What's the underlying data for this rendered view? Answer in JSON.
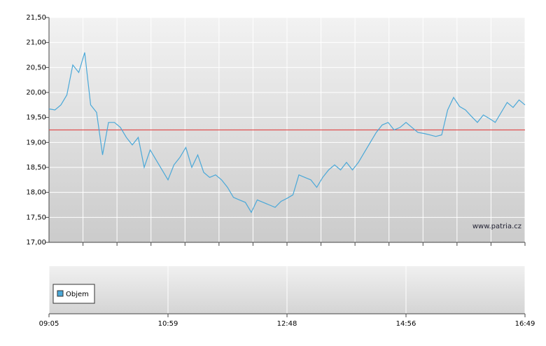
{
  "chart_data": {
    "type": "line",
    "categories": [
      "09:05",
      null,
      null,
      null,
      null,
      null,
      null,
      null,
      null,
      null,
      null,
      null,
      null,
      null,
      null,
      null,
      null,
      null,
      null,
      null,
      "10:59",
      null,
      null,
      null,
      null,
      null,
      null,
      null,
      null,
      null,
      null,
      null,
      null,
      null,
      null,
      null,
      null,
      null,
      null,
      null,
      "12:48",
      null,
      null,
      null,
      null,
      null,
      null,
      null,
      null,
      null,
      null,
      null,
      null,
      null,
      null,
      null,
      null,
      null,
      null,
      null,
      "14:56",
      null,
      null,
      null,
      null,
      null,
      null,
      null,
      null,
      null,
      null,
      null,
      null,
      null,
      null,
      null,
      null,
      null,
      null,
      null,
      "16:49"
    ],
    "values": [
      19.67,
      19.65,
      19.75,
      19.95,
      20.55,
      20.4,
      20.8,
      19.75,
      19.6,
      18.75,
      19.4,
      19.4,
      19.3,
      19.1,
      18.95,
      19.1,
      18.5,
      18.85,
      18.65,
      18.45,
      18.25,
      18.55,
      18.7,
      18.9,
      18.5,
      18.75,
      18.4,
      18.3,
      18.35,
      18.25,
      18.1,
      17.9,
      17.85,
      17.8,
      17.6,
      17.85,
      17.8,
      17.75,
      17.7,
      17.82,
      17.88,
      17.95,
      18.35,
      18.3,
      18.25,
      18.1,
      18.3,
      18.45,
      18.55,
      18.45,
      18.6,
      18.45,
      18.6,
      18.8,
      19.0,
      19.2,
      19.35,
      19.4,
      19.25,
      19.3,
      19.4,
      19.3,
      19.2,
      19.18,
      19.15,
      19.12,
      19.15,
      19.65,
      19.9,
      19.72,
      19.65,
      19.52,
      19.4,
      19.55,
      19.48,
      19.4,
      19.6,
      19.8,
      19.7,
      19.85,
      19.75
    ],
    "color": "#4aa8d8",
    "ylim": [
      17,
      21.5
    ],
    "yticks": [
      {
        "value": 17,
        "label": "17,00"
      },
      {
        "value": 17.5,
        "label": "17,50"
      },
      {
        "value": 18,
        "label": "18,00"
      },
      {
        "value": 18.5,
        "label": "18,50"
      },
      {
        "value": 19,
        "label": "19,00"
      },
      {
        "value": 19.5,
        "label": "19,50"
      },
      {
        "value": 20,
        "label": "20,00"
      },
      {
        "value": 20.5,
        "label": "20,50"
      },
      {
        "value": 21,
        "label": "21,00"
      },
      {
        "value": 21.5,
        "label": "21,50"
      }
    ],
    "grid": true,
    "reference_line": {
      "value": 19.25,
      "color": "#e05050"
    },
    "watermark": "www.patria.cz",
    "volume_legend": {
      "name": "Objem",
      "color": "#4aa8d8"
    }
  }
}
